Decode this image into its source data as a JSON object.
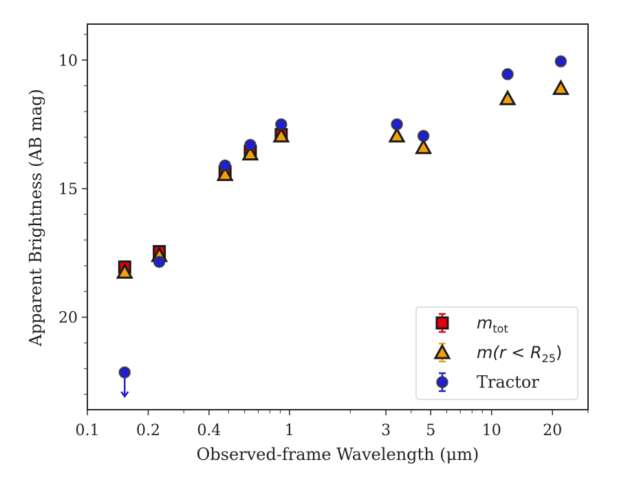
{
  "chart_data": {
    "type": "scatter",
    "xlabel": "Observed-frame Wavelength (μm)",
    "ylabel": "Apparent Brightness (AB mag)",
    "xscale": "log",
    "xlim": [
      0.1,
      30
    ],
    "ylim": [
      23.6,
      8.6
    ],
    "y_inverted": true,
    "grid": false,
    "legend_position": "lower-right",
    "x_tick_labels": [
      "0.1",
      "0.2",
      "0.4",
      "1",
      "3",
      "5",
      "10",
      "20"
    ],
    "x_tick_values": [
      0.1,
      0.2,
      0.4,
      1,
      3,
      5,
      10,
      20
    ],
    "y_tick_labels": [
      "10",
      "15",
      "20"
    ],
    "y_tick_values": [
      10,
      15,
      20
    ],
    "series": [
      {
        "name_base": "m",
        "name_sub": "tot",
        "marker": "square",
        "color": "#e8000b",
        "points": [
          {
            "x": 0.153,
            "y": 18.05
          },
          {
            "x": 0.227,
            "y": 17.45
          },
          {
            "x": 0.48,
            "y": 14.35
          },
          {
            "x": 0.64,
            "y": 13.55
          },
          {
            "x": 0.91,
            "y": 12.9
          }
        ]
      },
      {
        "name_base": "m(r < R",
        "name_sub": "25",
        "name_tail": ")",
        "marker": "triangle",
        "color": "#f5a00a",
        "points": [
          {
            "x": 0.153,
            "y": 18.25
          },
          {
            "x": 0.227,
            "y": 17.6
          },
          {
            "x": 0.48,
            "y": 14.45
          },
          {
            "x": 0.64,
            "y": 13.65
          },
          {
            "x": 0.91,
            "y": 12.95
          },
          {
            "x": 3.4,
            "y": 12.95
          },
          {
            "x": 4.6,
            "y": 13.4
          },
          {
            "x": 12.0,
            "y": 11.5
          },
          {
            "x": 22.0,
            "y": 11.1
          }
        ]
      },
      {
        "name": "Tractor",
        "marker": "circle",
        "color": "#1f1fd6",
        "points": [
          {
            "x": 0.153,
            "y": 22.15,
            "upper_limit": true
          },
          {
            "x": 0.227,
            "y": 17.85
          },
          {
            "x": 0.48,
            "y": 14.1
          },
          {
            "x": 0.64,
            "y": 13.3
          },
          {
            "x": 0.91,
            "y": 12.5
          },
          {
            "x": 3.4,
            "y": 12.5
          },
          {
            "x": 4.6,
            "y": 12.95
          },
          {
            "x": 12.0,
            "y": 10.55
          },
          {
            "x": 22.0,
            "y": 10.05
          }
        ]
      }
    ]
  }
}
